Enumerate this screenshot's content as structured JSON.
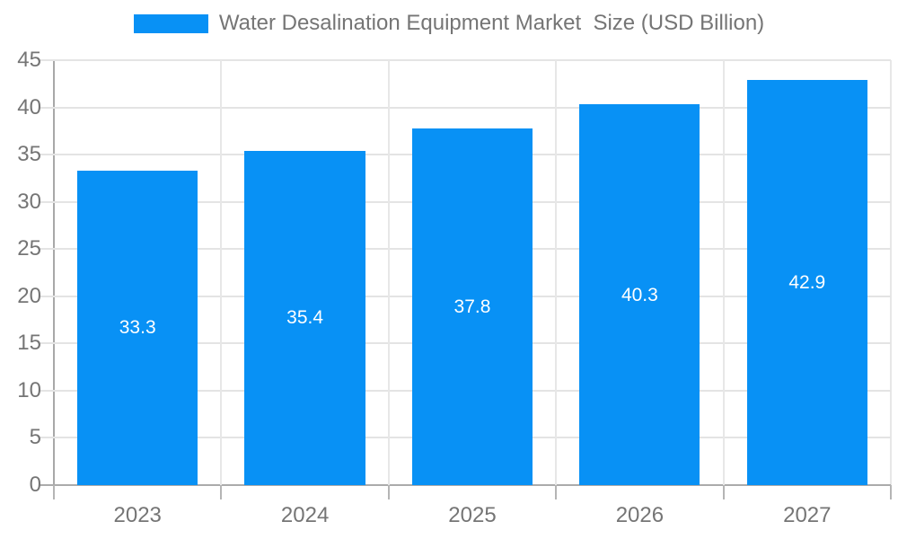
{
  "legend": {
    "label": "Water Desalination Equipment Market  Size (USD Billion)",
    "swatch_color": "#0891f5"
  },
  "chart_data": {
    "type": "bar",
    "title": "Water Desalination Equipment Market  Size (USD Billion)",
    "categories": [
      "2023",
      "2024",
      "2025",
      "2026",
      "2027"
    ],
    "values": [
      33.3,
      35.4,
      37.8,
      40.3,
      42.9
    ],
    "value_labels": [
      "33.3",
      "35.4",
      "37.8",
      "40.3",
      "42.9"
    ],
    "xlabel": "",
    "ylabel": "",
    "ylim": [
      0,
      45
    ],
    "ytick_step": 5,
    "ytick_labels": [
      "0",
      "5",
      "10",
      "15",
      "20",
      "25",
      "30",
      "35",
      "40",
      "45"
    ],
    "grid": true,
    "legend_position": "top",
    "bar_color": "#0891f5",
    "value_label_color": "#ffffff",
    "axis_text_color": "#757575"
  },
  "colors": {
    "bar": "#0891f5",
    "gridline": "#e4e4e4",
    "axis_line": "#ababab",
    "axis_text": "#757575",
    "background": "#ffffff"
  }
}
